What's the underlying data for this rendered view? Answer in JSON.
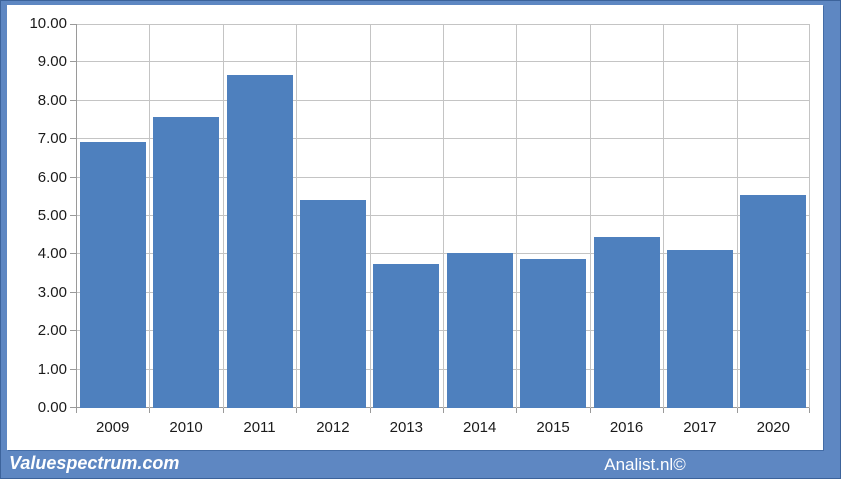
{
  "chart_data": {
    "type": "bar",
    "categories": [
      "2009",
      "2010",
      "2011",
      "2012",
      "2013",
      "2014",
      "2015",
      "2016",
      "2017",
      "2020"
    ],
    "values": [
      6.93,
      7.58,
      8.68,
      5.42,
      3.75,
      4.04,
      3.87,
      4.45,
      4.11,
      5.54
    ],
    "title": "",
    "xlabel": "",
    "ylabel": "",
    "ylim": [
      0,
      10
    ],
    "ytick_step": 1,
    "ytick_decimals": 2,
    "grid": "horizontal-and-vertical",
    "legend": "none",
    "bar_color": "#4e80be"
  },
  "footer": {
    "brand_left": "Valuespectrum.com",
    "brand_right": "Analist.nl©"
  },
  "colors": {
    "frame_blue": "#5e87c2",
    "plot_background": "#ffffff",
    "gridline": "#c4c4c4",
    "axis": "#9a9a9a",
    "bar_fill": "#4e80be",
    "label_text": "#1a1a1a",
    "footer_text": "#ffffff"
  }
}
